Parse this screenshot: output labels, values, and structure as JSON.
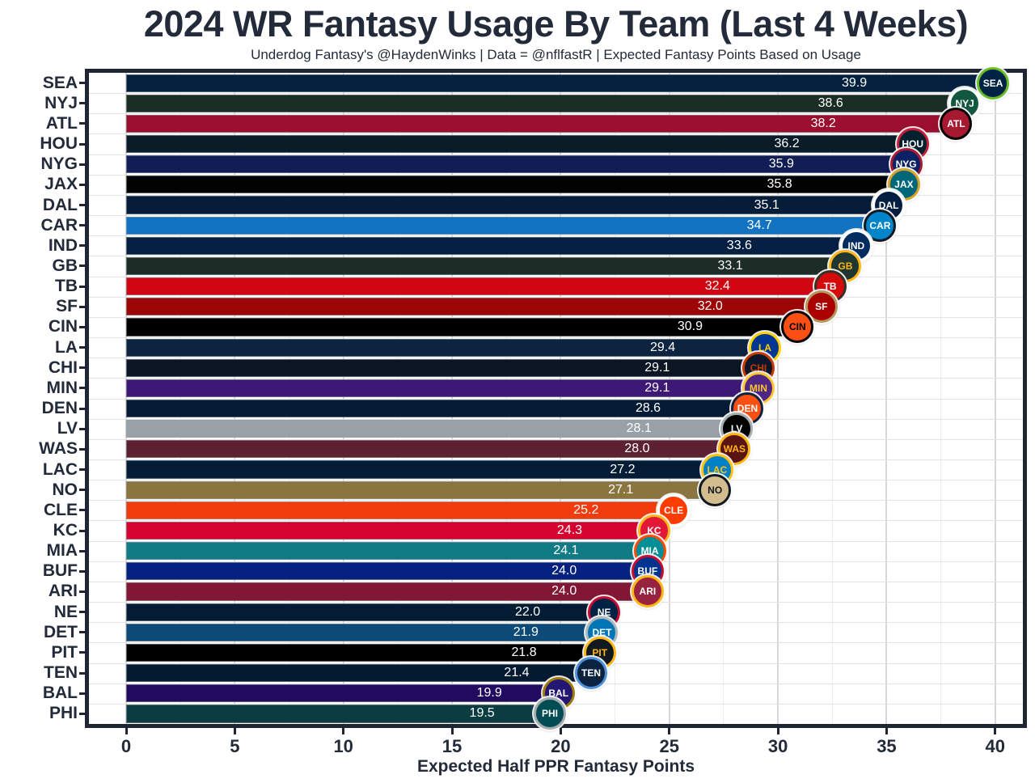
{
  "title": "2024 WR Fantasy Usage By Team (Last 4 Weeks)",
  "subtitle": "Underdog Fantasy's @HaydenWinks | Data = @nflfastR | Expected Fantasy Points Based on Usage",
  "colors": {
    "background": "#FFFFFF",
    "title_text": "#232B3A",
    "axis_text": "#232B3A",
    "panel_border": "#1E2634",
    "grid_major": "#D7D7D7",
    "grid_minor": "#EDEDED",
    "value_text": "#FFFFFF"
  },
  "chart_data": {
    "type": "bar",
    "orientation": "horizontal",
    "title": "2024 WR Fantasy Usage By Team (Last 4 Weeks)",
    "subtitle": "Underdog Fantasy's @HaydenWinks | Data = @nflfastR | Expected Fantasy Points Based on Usage",
    "xlabel": "Expected Half PPR Fantasy Points",
    "ylabel": "",
    "xlim": [
      0,
      40
    ],
    "xticks": [
      "0",
      "5",
      "10",
      "15",
      "20",
      "25",
      "30",
      "35",
      "40"
    ],
    "grid": true,
    "legend": false,
    "categories": [
      "SEA",
      "NYJ",
      "ATL",
      "HOU",
      "NYG",
      "JAX",
      "DAL",
      "CAR",
      "IND",
      "GB",
      "TB",
      "SF",
      "CIN",
      "LA",
      "CHI",
      "MIN",
      "DEN",
      "LV",
      "WAS",
      "LAC",
      "NO",
      "CLE",
      "KC",
      "MIA",
      "BUF",
      "ARI",
      "NE",
      "DET",
      "PIT",
      "TEN",
      "BAL",
      "PHI"
    ],
    "values": [
      39.9,
      38.6,
      38.2,
      36.2,
      35.9,
      35.8,
      35.1,
      34.7,
      33.6,
      33.1,
      32.4,
      32.0,
      30.9,
      29.4,
      29.1,
      29.1,
      28.6,
      28.1,
      28.0,
      27.2,
      27.1,
      25.2,
      24.3,
      24.1,
      24.0,
      24.0,
      22.0,
      21.9,
      21.8,
      21.4,
      19.9,
      19.5
    ],
    "teams": [
      {
        "abbr": "SEA",
        "label": "39.9",
        "value": 39.9,
        "bar_color": "#04223F",
        "logo": {
          "bg": "#002244",
          "ring": "#69BE28",
          "fg": "#FFFFFF"
        }
      },
      {
        "abbr": "NYJ",
        "label": "38.6",
        "value": 38.6,
        "bar_color": "#1B2E25",
        "logo": {
          "bg": "#125740",
          "ring": "#FFFFFF",
          "fg": "#FFFFFF"
        }
      },
      {
        "abbr": "ATL",
        "label": "38.2",
        "value": 38.2,
        "bar_color": "#9B0F2E",
        "logo": {
          "bg": "#A71930",
          "ring": "#000000",
          "fg": "#FFFFFF"
        }
      },
      {
        "abbr": "HOU",
        "label": "36.2",
        "value": 36.2,
        "bar_color": "#0A1C28",
        "logo": {
          "bg": "#03202F",
          "ring": "#C41E3A",
          "fg": "#FFFFFF"
        }
      },
      {
        "abbr": "NYG",
        "label": "35.9",
        "value": 35.9,
        "bar_color": "#121C55",
        "logo": {
          "bg": "#0B2265",
          "ring": "#A71930",
          "fg": "#FFFFFF"
        }
      },
      {
        "abbr": "JAX",
        "label": "35.8",
        "value": 35.8,
        "bar_color": "#020203",
        "logo": {
          "bg": "#006778",
          "ring": "#D7A22A",
          "fg": "#FFFFFF"
        }
      },
      {
        "abbr": "DAL",
        "label": "35.1",
        "value": 35.1,
        "bar_color": "#051D38",
        "logo": {
          "bg": "#041E42",
          "ring": "#FFFFFF",
          "fg": "#FFFFFF"
        }
      },
      {
        "abbr": "CAR",
        "label": "34.7",
        "value": 34.7,
        "bar_color": "#1273C0",
        "logo": {
          "bg": "#0085CA",
          "ring": "#101820",
          "fg": "#FFFFFF"
        }
      },
      {
        "abbr": "IND",
        "label": "33.6",
        "value": 33.6,
        "bar_color": "#041F42",
        "logo": {
          "bg": "#002C5F",
          "ring": "#FFFFFF",
          "fg": "#FFFFFF"
        }
      },
      {
        "abbr": "GB",
        "label": "33.1",
        "value": 33.1,
        "bar_color": "#1B2D26",
        "logo": {
          "bg": "#203731",
          "ring": "#FFB612",
          "fg": "#FFB612"
        }
      },
      {
        "abbr": "TB",
        "label": "32.4",
        "value": 32.4,
        "bar_color": "#D00712",
        "logo": {
          "bg": "#D50A0A",
          "ring": "#34302B",
          "fg": "#FFFFFF"
        }
      },
      {
        "abbr": "SF",
        "label": "32.0",
        "value": 32.0,
        "bar_color": "#9C0606",
        "logo": {
          "bg": "#AA0000",
          "ring": "#B3995D",
          "fg": "#FFFFFF"
        }
      },
      {
        "abbr": "CIN",
        "label": "30.9",
        "value": 30.9,
        "bar_color": "#000000",
        "logo": {
          "bg": "#FB4F14",
          "ring": "#000000",
          "fg": "#000000"
        }
      },
      {
        "abbr": "LA",
        "label": "29.4",
        "value": 29.4,
        "bar_color": "#0D2441",
        "logo": {
          "bg": "#003594",
          "ring": "#FFD100",
          "fg": "#FFD100"
        }
      },
      {
        "abbr": "CHI",
        "label": "29.1",
        "value": 29.1,
        "bar_color": "#0C1524",
        "logo": {
          "bg": "#0B162A",
          "ring": "#C83803",
          "fg": "#C83803"
        }
      },
      {
        "abbr": "MIN",
        "label": "29.1",
        "value": 29.1,
        "bar_color": "#3D1875",
        "logo": {
          "bg": "#4F2683",
          "ring": "#FFC62F",
          "fg": "#FFC62F"
        }
      },
      {
        "abbr": "DEN",
        "label": "28.6",
        "value": 28.6,
        "bar_color": "#051A33",
        "logo": {
          "bg": "#FB4F14",
          "ring": "#0C2340",
          "fg": "#FFFFFF"
        }
      },
      {
        "abbr": "LV",
        "label": "28.1",
        "value": 28.1,
        "bar_color": "#98A1A8",
        "logo": {
          "bg": "#000000",
          "ring": "#A5ACAF",
          "fg": "#FFFFFF"
        }
      },
      {
        "abbr": "WAS",
        "label": "28.0",
        "value": 28.0,
        "bar_color": "#5E2132",
        "logo": {
          "bg": "#5A1414",
          "ring": "#FFB612",
          "fg": "#FFB612"
        }
      },
      {
        "abbr": "LAC",
        "label": "27.2",
        "value": 27.2,
        "bar_color": "#041C36",
        "logo": {
          "bg": "#0080C6",
          "ring": "#FFC20E",
          "fg": "#FFC20E"
        }
      },
      {
        "abbr": "NO",
        "label": "27.1",
        "value": 27.1,
        "bar_color": "#8B753F",
        "logo": {
          "bg": "#D3BC8D",
          "ring": "#101820",
          "fg": "#101820"
        }
      },
      {
        "abbr": "CLE",
        "label": "25.2",
        "value": 25.2,
        "bar_color": "#F33C0E",
        "logo": {
          "bg": "#FF3C00",
          "ring": "#FFFFFF",
          "fg": "#FFFFFF"
        }
      },
      {
        "abbr": "KC",
        "label": "24.3",
        "value": 24.3,
        "bar_color": "#D60230",
        "logo": {
          "bg": "#E31837",
          "ring": "#FFB81C",
          "fg": "#FFFFFF"
        }
      },
      {
        "abbr": "MIA",
        "label": "24.1",
        "value": 24.1,
        "bar_color": "#117B85",
        "logo": {
          "bg": "#008E97",
          "ring": "#FC4C02",
          "fg": "#FFFFFF"
        }
      },
      {
        "abbr": "BUF",
        "label": "24.0",
        "value": 24.0,
        "bar_color": "#052280",
        "logo": {
          "bg": "#00338D",
          "ring": "#C60C30",
          "fg": "#FFFFFF"
        }
      },
      {
        "abbr": "ARI",
        "label": "24.0",
        "value": 24.0,
        "bar_color": "#811735",
        "logo": {
          "bg": "#97233F",
          "ring": "#FFB612",
          "fg": "#FFFFFF"
        }
      },
      {
        "abbr": "NE",
        "label": "22.0",
        "value": 22.0,
        "bar_color": "#041C33",
        "logo": {
          "bg": "#002244",
          "ring": "#C60C30",
          "fg": "#FFFFFF"
        }
      },
      {
        "abbr": "DET",
        "label": "21.9",
        "value": 21.9,
        "bar_color": "#0D4A77",
        "logo": {
          "bg": "#0076B6",
          "ring": "#B0B7BC",
          "fg": "#FFFFFF"
        }
      },
      {
        "abbr": "PIT",
        "label": "21.8",
        "value": 21.8,
        "bar_color": "#000000",
        "logo": {
          "bg": "#101820",
          "ring": "#FFB612",
          "fg": "#FFB612"
        }
      },
      {
        "abbr": "TEN",
        "label": "21.4",
        "value": 21.4,
        "bar_color": "#041A30",
        "logo": {
          "bg": "#0C2340",
          "ring": "#4B92DB",
          "fg": "#FFFFFF"
        }
      },
      {
        "abbr": "BAL",
        "label": "19.9",
        "value": 19.9,
        "bar_color": "#200B60",
        "logo": {
          "bg": "#241773",
          "ring": "#9E7C0C",
          "fg": "#FFFFFF"
        }
      },
      {
        "abbr": "PHI",
        "label": "19.5",
        "value": 19.5,
        "bar_color": "#0A3C42",
        "logo": {
          "bg": "#004C54",
          "ring": "#A5ACAF",
          "fg": "#FFFFFF"
        }
      }
    ]
  }
}
